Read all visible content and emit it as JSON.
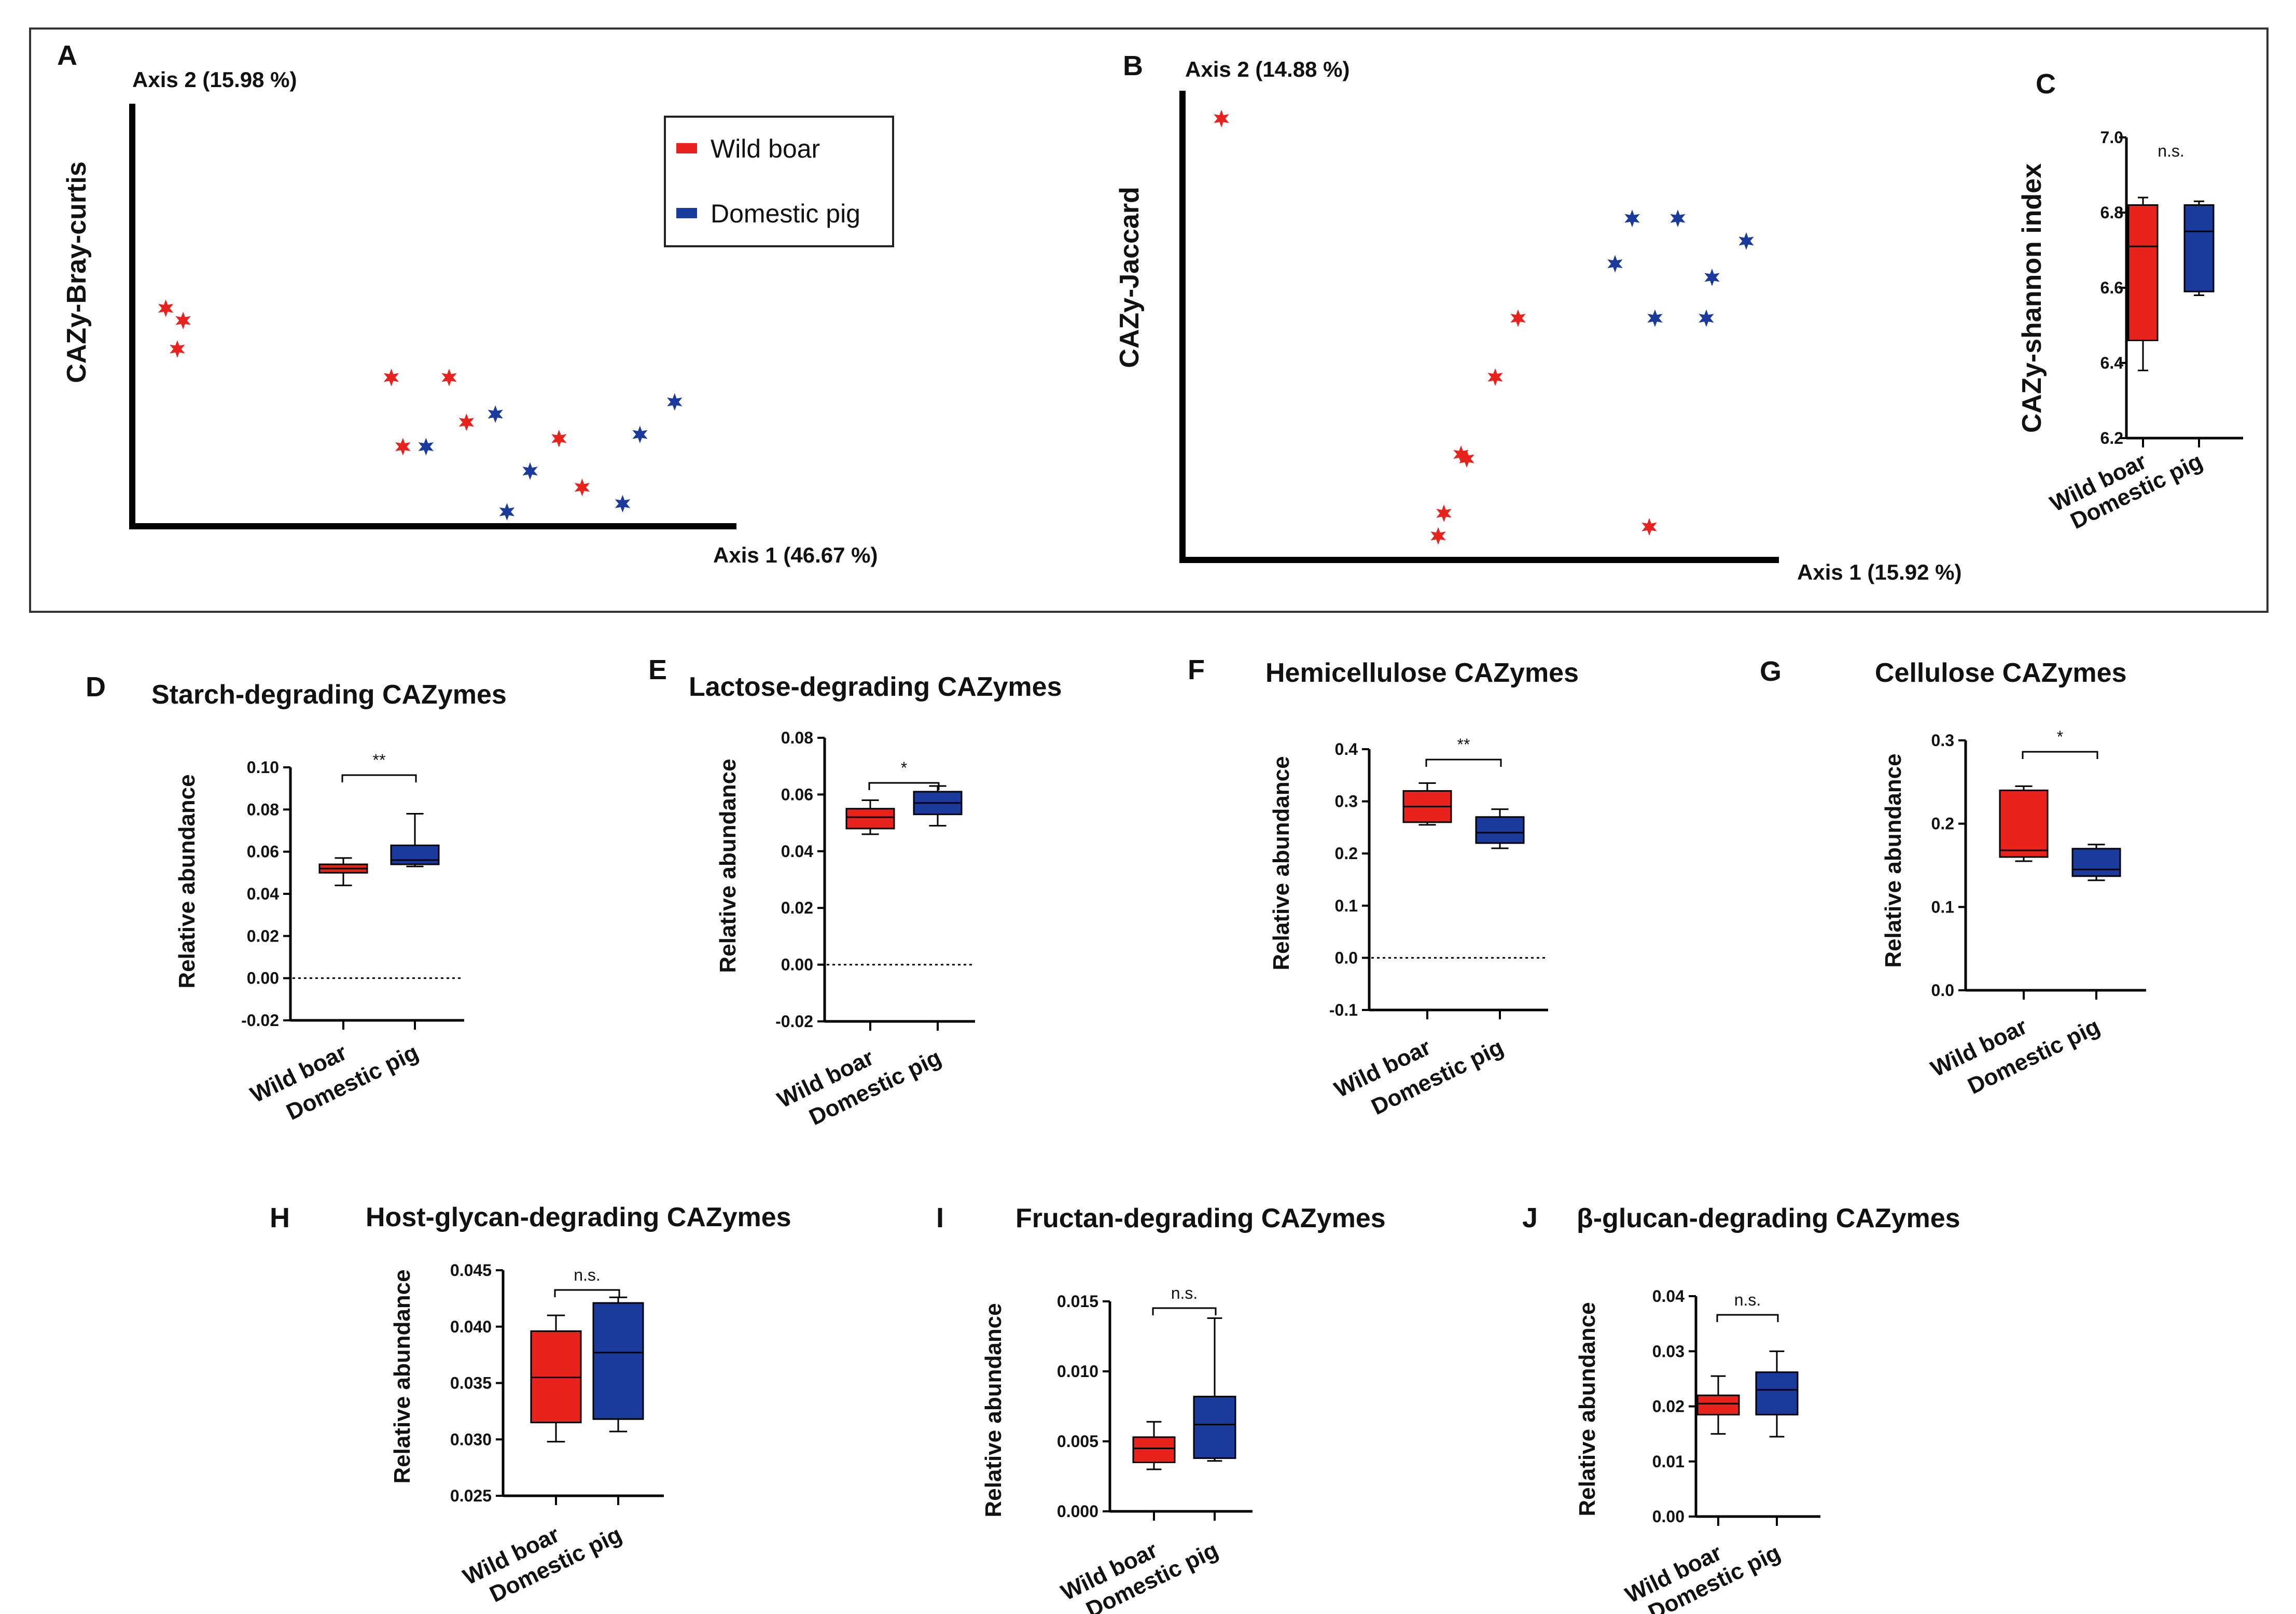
{
  "colors": {
    "wild": "#e8221c",
    "domestic": "#1a3b9c"
  },
  "chart_data": [
    {
      "id": "A",
      "type": "scatter",
      "title": "",
      "ylabel": "CAZy-Bray-curtis",
      "xlabel": "Axis 1 (46.67 %)",
      "axis2_label": "Axis 2 (15.98 %)",
      "xlim": [
        0,
        100
      ],
      "ylim": [
        0,
        100
      ],
      "legend": {
        "position": "top-right",
        "items": [
          "Wild boar",
          "Domestic pig"
        ]
      },
      "series": [
        {
          "name": "Wild boar",
          "points": [
            [
              4,
              51
            ],
            [
              7,
              48
            ],
            [
              6,
              41
            ],
            [
              43,
              34
            ],
            [
              56,
              23
            ],
            [
              53,
              34
            ],
            [
              45,
              17
            ],
            [
              72,
              19
            ],
            [
              76,
              7
            ]
          ]
        },
        {
          "name": "Domestic pig",
          "points": [
            [
              49,
              17
            ],
            [
              61,
              25
            ],
            [
              67,
              11
            ],
            [
              63,
              1
            ],
            [
              86,
              20
            ],
            [
              92,
              28
            ],
            [
              83,
              3
            ]
          ]
        }
      ]
    },
    {
      "id": "B",
      "type": "scatter",
      "title": "",
      "ylabel": "CAZy-Jaccard",
      "xlabel": "Axis 1 (15.92 %)",
      "axis2_label": "Axis 2 (14.88 %)",
      "xlim": [
        0,
        100
      ],
      "ylim": [
        0,
        100
      ],
      "series": [
        {
          "name": "Wild boar",
          "points": [
            [
              5,
              95
            ],
            [
              57,
              51
            ],
            [
              53,
              38
            ],
            [
              47,
              21
            ],
            [
              48,
              20
            ],
            [
              44,
              8
            ],
            [
              43,
              3
            ],
            [
              80,
              5
            ]
          ]
        },
        {
          "name": "Domestic pig",
          "points": [
            [
              77,
              73
            ],
            [
              85,
              73
            ],
            [
              74,
              63
            ],
            [
              81,
              51
            ],
            [
              90,
              51
            ],
            [
              91,
              60
            ],
            [
              97,
              68
            ]
          ]
        }
      ]
    },
    {
      "id": "C",
      "type": "box",
      "ylabel": "CAZy-shannon index",
      "categories": [
        "Wild boar",
        "Domestic pig"
      ],
      "yticks": [
        "6.2",
        "6.4",
        "6.6",
        "6.8",
        "7.0"
      ],
      "ylim": [
        6.2,
        7.0
      ],
      "zero_line": false,
      "significance": "n.s.",
      "bracket": false,
      "boxes": [
        {
          "min": 6.38,
          "q1": 6.46,
          "median": 6.71,
          "q3": 6.82,
          "max": 6.84
        },
        {
          "min": 6.58,
          "q1": 6.59,
          "median": 6.75,
          "q3": 6.82,
          "max": 6.83
        }
      ]
    },
    {
      "id": "D",
      "type": "box",
      "title": "Starch-degrading CAZymes",
      "ylabel": "Relative abundance",
      "categories": [
        "Wild boar",
        "Domestic pig"
      ],
      "yticks": [
        "-0.02",
        "0.00",
        "0.02",
        "0.04",
        "0.06",
        "0.08",
        "0.10"
      ],
      "ylim": [
        -0.02,
        0.1
      ],
      "zero_line": true,
      "significance": "**",
      "bracket": true,
      "boxes": [
        {
          "min": 0.044,
          "q1": 0.05,
          "median": 0.052,
          "q3": 0.054,
          "max": 0.057
        },
        {
          "min": 0.053,
          "q1": 0.054,
          "median": 0.056,
          "q3": 0.063,
          "max": 0.078
        }
      ]
    },
    {
      "id": "E",
      "type": "box",
      "title": "Lactose-degrading CAZymes",
      "ylabel": "Relative abundance",
      "categories": [
        "Wild boar",
        "Domestic pig"
      ],
      "yticks": [
        "-0.02",
        "0.00",
        "0.02",
        "0.04",
        "0.06",
        "0.08"
      ],
      "ylim": [
        -0.02,
        0.08
      ],
      "zero_line": true,
      "significance": "*",
      "bracket": true,
      "boxes": [
        {
          "min": 0.046,
          "q1": 0.048,
          "median": 0.052,
          "q3": 0.055,
          "max": 0.058
        },
        {
          "min": 0.049,
          "q1": 0.053,
          "median": 0.057,
          "q3": 0.061,
          "max": 0.063
        }
      ]
    },
    {
      "id": "F",
      "type": "box",
      "title": "Hemicellulose CAZymes",
      "ylabel": "Relative abundance",
      "categories": [
        "Wild boar",
        "Domestic pig"
      ],
      "yticks": [
        "-0.1",
        "0.0",
        "0.1",
        "0.2",
        "0.3",
        "0.4"
      ],
      "ylim": [
        -0.1,
        0.4
      ],
      "zero_line": true,
      "significance": "**",
      "bracket": true,
      "boxes": [
        {
          "min": 0.255,
          "q1": 0.26,
          "median": 0.29,
          "q3": 0.32,
          "max": 0.335
        },
        {
          "min": 0.21,
          "q1": 0.22,
          "median": 0.24,
          "q3": 0.27,
          "max": 0.285
        }
      ]
    },
    {
      "id": "G",
      "type": "box",
      "title": "Cellulose CAZymes",
      "ylabel": "Relative abundance",
      "categories": [
        "Wild boar",
        "Domestic pig"
      ],
      "yticks": [
        "0.0",
        "0.1",
        "0.2",
        "0.3"
      ],
      "ylim": [
        0,
        0.3
      ],
      "zero_line": false,
      "significance": "*",
      "bracket": true,
      "boxes": [
        {
          "min": 0.155,
          "q1": 0.16,
          "median": 0.168,
          "q3": 0.24,
          "max": 0.245
        },
        {
          "min": 0.132,
          "q1": 0.137,
          "median": 0.145,
          "q3": 0.17,
          "max": 0.175
        }
      ]
    },
    {
      "id": "H",
      "type": "box",
      "title": "Host-glycan-degrading CAZymes",
      "ylabel": "Relative abundance",
      "categories": [
        "Wild boar",
        "Domestic pig"
      ],
      "yticks": [
        "0.025",
        "0.030",
        "0.035",
        "0.040",
        "0.045"
      ],
      "ylim": [
        0.025,
        0.045
      ],
      "zero_line": false,
      "significance": "n.s.",
      "bracket": true,
      "boxes": [
        {
          "min": 0.0298,
          "q1": 0.0315,
          "median": 0.0355,
          "q3": 0.0396,
          "max": 0.041
        },
        {
          "min": 0.0307,
          "q1": 0.0318,
          "median": 0.0377,
          "q3": 0.0421,
          "max": 0.0426
        }
      ]
    },
    {
      "id": "I",
      "type": "box",
      "title": "Fructan-degrading CAZymes",
      "ylabel": "Relative abundance",
      "categories": [
        "Wild boar",
        "Domestic pig"
      ],
      "yticks": [
        "0.000",
        "0.005",
        "0.010",
        "0.015"
      ],
      "ylim": [
        0,
        0.015
      ],
      "zero_line": false,
      "significance": "n.s.",
      "bracket": true,
      "boxes": [
        {
          "min": 0.003,
          "q1": 0.0035,
          "median": 0.0045,
          "q3": 0.0053,
          "max": 0.0064
        },
        {
          "min": 0.0036,
          "q1": 0.0038,
          "median": 0.0062,
          "q3": 0.0082,
          "max": 0.0138
        }
      ]
    },
    {
      "id": "J",
      "type": "box",
      "title": "β-glucan-degrading CAZymes",
      "ylabel": "Relative abundance",
      "categories": [
        "Wild boar",
        "Domestic pig"
      ],
      "yticks": [
        "0.00",
        "0.01",
        "0.02",
        "0.03",
        "0.04"
      ],
      "ylim": [
        0,
        0.04
      ],
      "zero_line": false,
      "significance": "n.s.",
      "bracket": true,
      "boxes": [
        {
          "min": 0.015,
          "q1": 0.0185,
          "median": 0.0205,
          "q3": 0.022,
          "max": 0.0255
        },
        {
          "min": 0.0145,
          "q1": 0.0185,
          "median": 0.023,
          "q3": 0.0262,
          "max": 0.03
        }
      ]
    }
  ]
}
